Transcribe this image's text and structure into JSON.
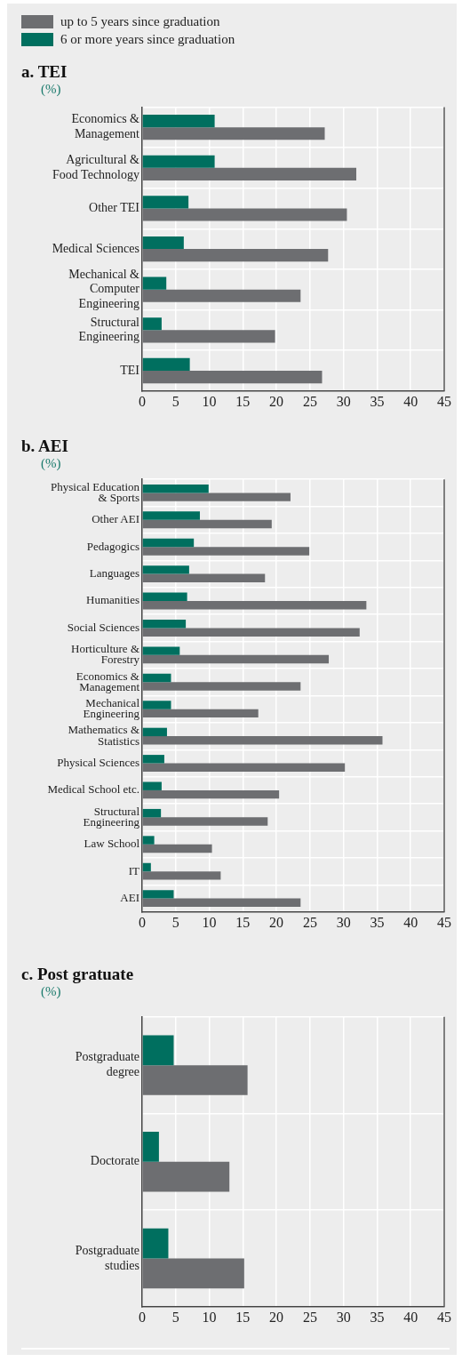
{
  "chart_data": [
    {
      "type": "bar",
      "orientation": "horizontal",
      "title": "a. TEI",
      "subtitle": "(%)",
      "legend": "top left",
      "grid": true,
      "categories": [
        "Economics & Management",
        "Agricultural & Food Technology",
        "Other TEI",
        "Medical Sciences",
        "Mechanical & Computer Engineering",
        "Structural Engineering",
        "TEI"
      ],
      "series": [
        {
          "name": "up to 5 years since graduation",
          "color": "#6d6e71",
          "values": [
            27.2,
            31.9,
            30.5,
            27.7,
            23.6,
            19.8,
            26.8
          ]
        },
        {
          "name": "6 or more years since graduation",
          "color": "#006f5f",
          "values": [
            10.8,
            10.8,
            6.9,
            6.2,
            3.6,
            2.9,
            7.1
          ]
        }
      ],
      "xlim": [
        0,
        45
      ],
      "xticks": [
        0,
        5,
        10,
        15,
        20,
        25,
        30,
        35,
        40,
        45
      ]
    },
    {
      "type": "bar",
      "orientation": "horizontal",
      "title": "b. AEI",
      "subtitle": "(%)",
      "grid": true,
      "categories": [
        "Physical Education & Sports",
        "Other AEI",
        "Pedagogics",
        "Languages",
        "Humanities",
        "Social Sciences",
        "Horticulture & Forestry",
        "Economics & Management",
        "Mechanical Engineering",
        "Mathematics & Statistics",
        "Physical Sciences",
        "Medical School etc.",
        "Structural Engineering",
        "Law School",
        "IT",
        "AEI"
      ],
      "series": [
        {
          "color": "#6d6e71",
          "values": [
            22.1,
            19.3,
            24.9,
            18.3,
            33.4,
            32.4,
            27.8,
            23.6,
            17.3,
            35.8,
            30.2,
            20.4,
            18.7,
            10.4,
            11.7,
            23.6
          ]
        },
        {
          "color": "#006f5f",
          "values": [
            9.9,
            8.6,
            7.7,
            7.0,
            6.7,
            6.5,
            5.6,
            4.3,
            4.3,
            3.7,
            3.3,
            2.9,
            2.8,
            1.8,
            1.3,
            4.7
          ]
        }
      ],
      "xlim": [
        0,
        45
      ],
      "xticks": [
        0,
        5,
        10,
        15,
        20,
        25,
        30,
        35,
        40,
        45
      ]
    },
    {
      "type": "bar",
      "orientation": "horizontal",
      "title": "c. Post gratuate",
      "subtitle": "(%)",
      "grid": true,
      "categories": [
        "Postgraduate degree",
        "Doctorate",
        "Postgraduate studies"
      ],
      "series": [
        {
          "color": "#6d6e71",
          "values": [
            15.7,
            13.0,
            15.2
          ]
        },
        {
          "color": "#006f5f",
          "values": [
            4.7,
            2.5,
            3.9
          ]
        }
      ],
      "xlim": [
        0,
        45
      ],
      "xticks": [
        0,
        5,
        10,
        15,
        20,
        25,
        30,
        35,
        40,
        45
      ]
    }
  ]
}
